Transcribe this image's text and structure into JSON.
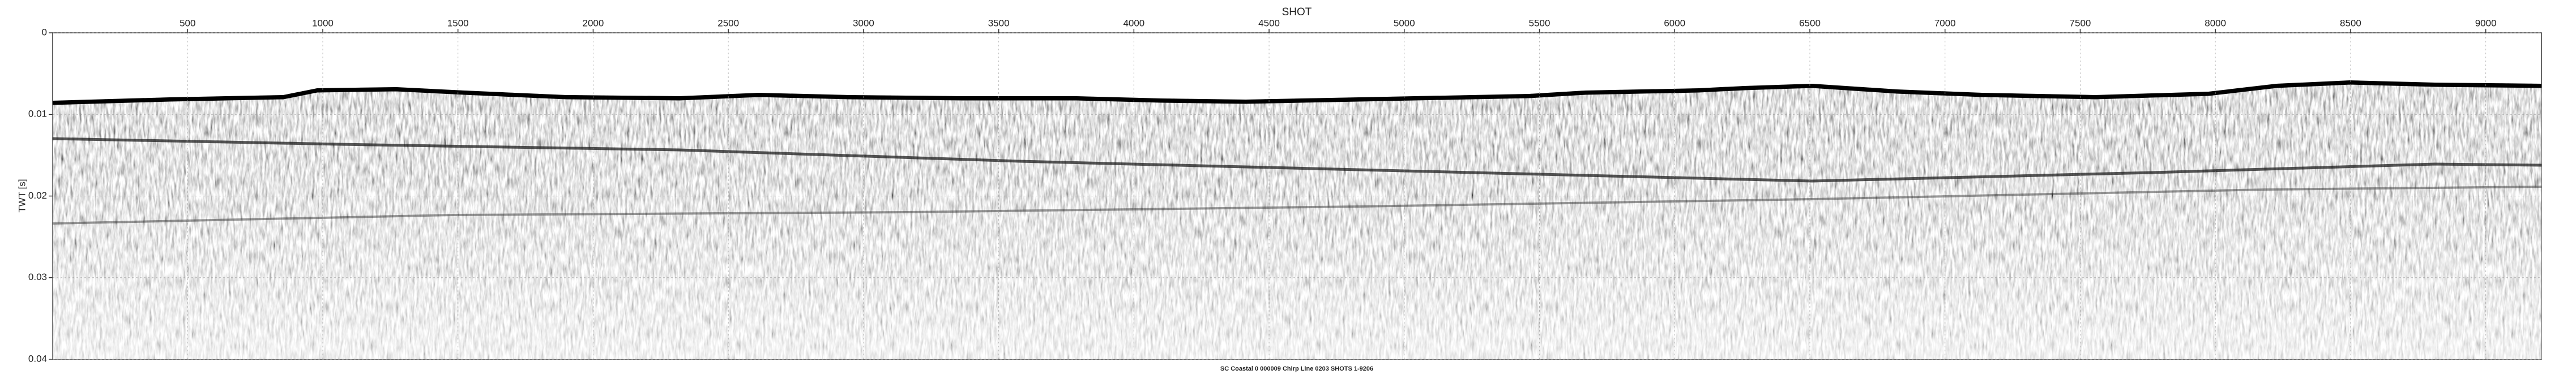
{
  "chart_data": {
    "type": "seismic",
    "title": "SHOT",
    "y_label": "TWT [s]",
    "caption": "SC Coastal 0 000009 Chirp Line 0203 SHOTS 1-9206",
    "xlim": [
      1,
      9206
    ],
    "xticks": [
      500,
      1000,
      1500,
      2000,
      2500,
      3000,
      3500,
      4000,
      4500,
      5000,
      5500,
      6000,
      6500,
      7000,
      7500,
      8000,
      8500,
      9000
    ],
    "xaxis_position": "top",
    "ylim": [
      0,
      0.04
    ],
    "yticks": [
      0,
      0.01,
      0.02,
      0.03,
      0.04
    ],
    "y_inverted": true,
    "grid": true
  }
}
